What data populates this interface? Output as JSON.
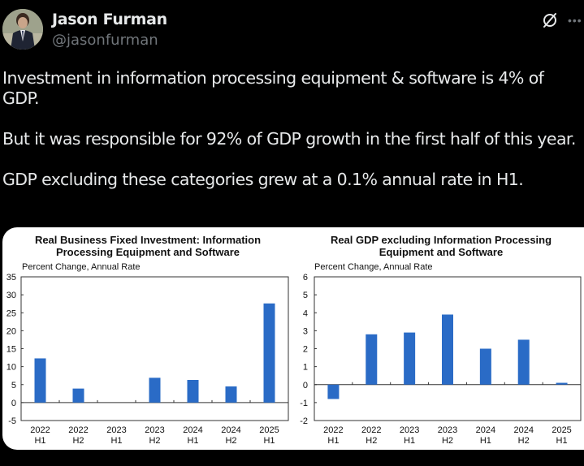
{
  "author": {
    "name": "Jason Furman",
    "handle": "@jasonfurman"
  },
  "icons": {
    "grok": "grok-slash-circle-icon",
    "more": "more-dots-icon"
  },
  "tweet": {
    "paragraphs": [
      [
        "Investment in information processing equipment & software is 4% of",
        "GDP."
      ],
      [
        "But it was responsible for 92% of GDP growth in the first half of this year."
      ],
      [
        "GDP excluding these categories grew at a 0.1% annual rate in H1."
      ]
    ]
  },
  "colors": {
    "bar": "#2a6bc6",
    "background": "#000000",
    "card": "#ffffff"
  },
  "chart_data": [
    {
      "type": "bar",
      "title": [
        "Real Business Fixed Investment: Information",
        "Processing Equipment and Software"
      ],
      "ylabel": "Percent Change, Annual Rate",
      "xlabel": "",
      "categories": [
        [
          "2022",
          "H1"
        ],
        [
          "2022",
          "H2"
        ],
        [
          "2023",
          "H1"
        ],
        [
          "2023",
          "H2"
        ],
        [
          "2024",
          "H1"
        ],
        [
          "2024",
          "H2"
        ],
        [
          "2025",
          "H1"
        ]
      ],
      "values": [
        12.3,
        3.9,
        0.0,
        6.9,
        6.3,
        4.5,
        27.6
      ],
      "ylim": [
        -5,
        35
      ],
      "yticks": [
        35,
        30,
        25,
        20,
        15,
        10,
        5,
        0,
        -5
      ],
      "grid": false,
      "legend": "none"
    },
    {
      "type": "bar",
      "title": [
        "Real GDP excluding Information Processing",
        "Equipment and Software"
      ],
      "ylabel": "Percent Change, Annual Rate",
      "xlabel": "",
      "categories": [
        [
          "2022",
          "H1"
        ],
        [
          "2022",
          "H2"
        ],
        [
          "2023",
          "H1"
        ],
        [
          "2023",
          "H2"
        ],
        [
          "2024",
          "H1"
        ],
        [
          "2024",
          "H2"
        ],
        [
          "2025",
          "H1"
        ]
      ],
      "values": [
        -0.8,
        2.8,
        2.9,
        3.9,
        2.0,
        2.5,
        0.1
      ],
      "ylim": [
        -2,
        6
      ],
      "yticks": [
        6,
        5,
        4,
        3,
        2,
        1,
        0,
        -1,
        -2
      ],
      "grid": false,
      "legend": "none"
    }
  ]
}
